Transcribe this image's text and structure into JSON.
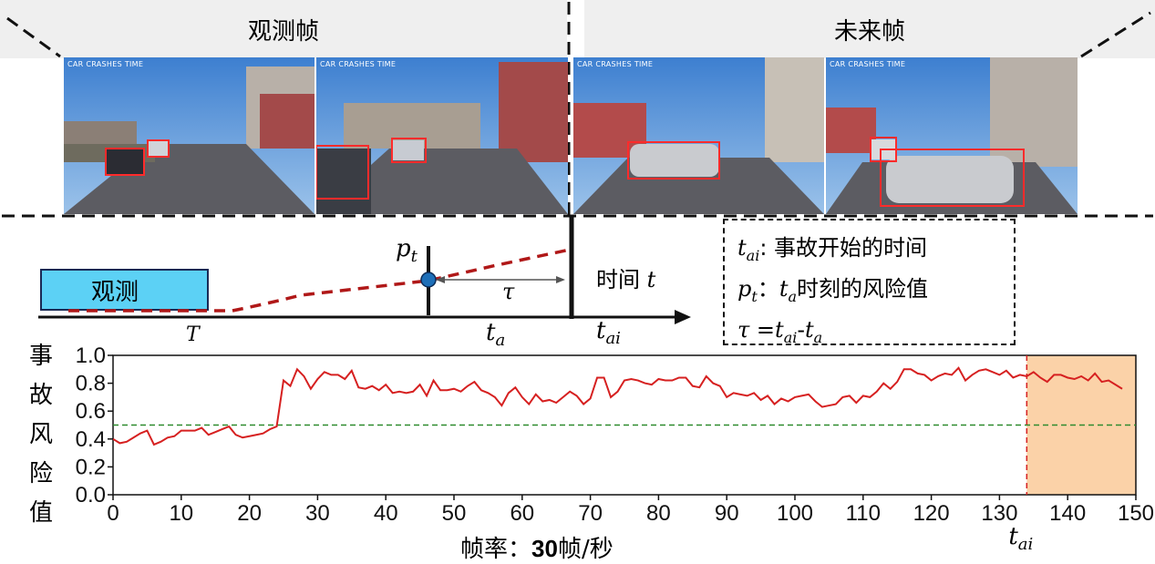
{
  "header": {
    "observed_label": "观测帧",
    "future_label": "未来帧"
  },
  "frames": {
    "watermark": "CAR CRASHES TIME"
  },
  "timeline": {
    "observe_box_label": "观测",
    "T_label": "T",
    "pt_label": "p",
    "pt_sub": "t",
    "tau_label": "τ",
    "ta_label": "t",
    "ta_sub": "a",
    "tai_label": "t",
    "tai_sub": "ai",
    "time_label": "时间",
    "time_var": "t"
  },
  "legend": {
    "line1_var": "t",
    "line1_sub": "ai",
    "line1_text": ": 事故开始的时间",
    "line2_var": "p",
    "line2_sub": "t",
    "line2_mid": "：",
    "line2_var2": "t",
    "line2_sub2": "a",
    "line2_text": "时刻的风险值",
    "line3_tau": "τ",
    "line3_eq": "=",
    "line3_v1": "t",
    "line3_s1": "ai",
    "line3_dash": "-",
    "line3_v2": "t",
    "line3_s2": "a"
  },
  "chart_data": {
    "type": "line",
    "ylabel": "事故风险值",
    "xlabel_prefix": "帧率：",
    "xlabel_bold": "30",
    "xlabel_suffix": "帧/秒",
    "xlim": [
      0,
      150
    ],
    "ylim": [
      0.0,
      1.0
    ],
    "x_ticks": [
      0,
      10,
      20,
      30,
      40,
      50,
      60,
      70,
      80,
      90,
      100,
      110,
      120,
      130,
      140,
      150
    ],
    "y_ticks": [
      "0.0",
      "0.2",
      "0.4",
      "0.6",
      "0.8",
      "1.0"
    ],
    "threshold": 0.5,
    "accident_frame": 134,
    "accident_label_var": "t",
    "accident_label_sub": "ai",
    "shaded_range": [
      134,
      150
    ],
    "colors": {
      "line": "#d62020",
      "threshold": "#2e8b2e",
      "shade": "#fbd2a8",
      "marker": "#d62020"
    },
    "series": [
      {
        "values": [
          0.4,
          0.37,
          0.38,
          0.41,
          0.44,
          0.46,
          0.36,
          0.38,
          0.41,
          0.42,
          0.46,
          0.46,
          0.46,
          0.48,
          0.43,
          0.45,
          0.47,
          0.49,
          0.43,
          0.41,
          0.42,
          0.43,
          0.44,
          0.47,
          0.49,
          0.82,
          0.78,
          0.9,
          0.85,
          0.76,
          0.83,
          0.88,
          0.86,
          0.86,
          0.83,
          0.89,
          0.77,
          0.76,
          0.78,
          0.75,
          0.79,
          0.73,
          0.74,
          0.73,
          0.74,
          0.79,
          0.71,
          0.82,
          0.75,
          0.75,
          0.76,
          0.74,
          0.78,
          0.81,
          0.75,
          0.73,
          0.7,
          0.64,
          0.73,
          0.77,
          0.7,
          0.65,
          0.72,
          0.67,
          0.68,
          0.66,
          0.7,
          0.74,
          0.71,
          0.65,
          0.69,
          0.84,
          0.84,
          0.7,
          0.74,
          0.82,
          0.83,
          0.82,
          0.8,
          0.79,
          0.83,
          0.82,
          0.82,
          0.84,
          0.84,
          0.78,
          0.77,
          0.85,
          0.8,
          0.78,
          0.7,
          0.73,
          0.72,
          0.71,
          0.73,
          0.68,
          0.71,
          0.65,
          0.69,
          0.67,
          0.7,
          0.71,
          0.72,
          0.67,
          0.63,
          0.64,
          0.65,
          0.7,
          0.71,
          0.66,
          0.71,
          0.7,
          0.74,
          0.8,
          0.76,
          0.81,
          0.9,
          0.9,
          0.87,
          0.86,
          0.82,
          0.85,
          0.87,
          0.86,
          0.91,
          0.82,
          0.86,
          0.89,
          0.9,
          0.88,
          0.86,
          0.89,
          0.84,
          0.86,
          0.85,
          0.88,
          0.84,
          0.81,
          0.86,
          0.86,
          0.84,
          0.83,
          0.85,
          0.82,
          0.87,
          0.81,
          0.82,
          0.79,
          0.76
        ]
      }
    ]
  }
}
